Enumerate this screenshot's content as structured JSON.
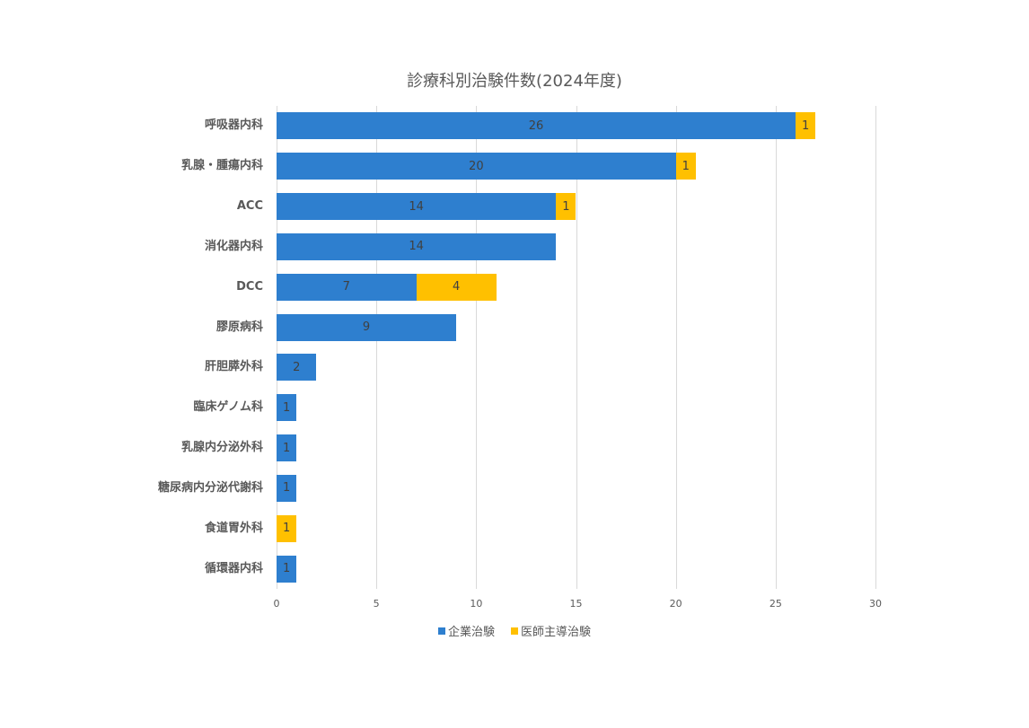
{
  "chart_data": {
    "type": "bar",
    "orientation": "horizontal",
    "stacked": true,
    "title": "診療科別治験件数(2024年度)",
    "xlabel": "",
    "ylabel": "",
    "xlim": [
      0,
      30
    ],
    "xticks": [
      0,
      5,
      10,
      15,
      20,
      25,
      30
    ],
    "grid": true,
    "legend_position": "bottom",
    "categories": [
      "呼吸器内科",
      "乳腺・腫瘍内科",
      "ACC",
      "消化器内科",
      "DCC",
      "膠原病科",
      "肝胆膵外科",
      "臨床ゲノム科",
      "乳腺内分泌外科",
      "糖尿病内分泌代謝科",
      "食道胃外科",
      "循環器内科"
    ],
    "series": [
      {
        "name": "企業治験",
        "color": "#2e7fcf",
        "values": [
          26,
          20,
          14,
          14,
          7,
          9,
          2,
          1,
          1,
          1,
          0,
          1
        ]
      },
      {
        "name": "医師主導治験",
        "color": "#ffc000",
        "values": [
          1,
          1,
          1,
          0,
          4,
          0,
          0,
          0,
          0,
          0,
          1,
          0
        ]
      }
    ]
  },
  "legend": {
    "items": [
      {
        "label": "企業治験",
        "color": "#2e7fcf"
      },
      {
        "label": "医師主導治験",
        "color": "#ffc000"
      }
    ]
  }
}
